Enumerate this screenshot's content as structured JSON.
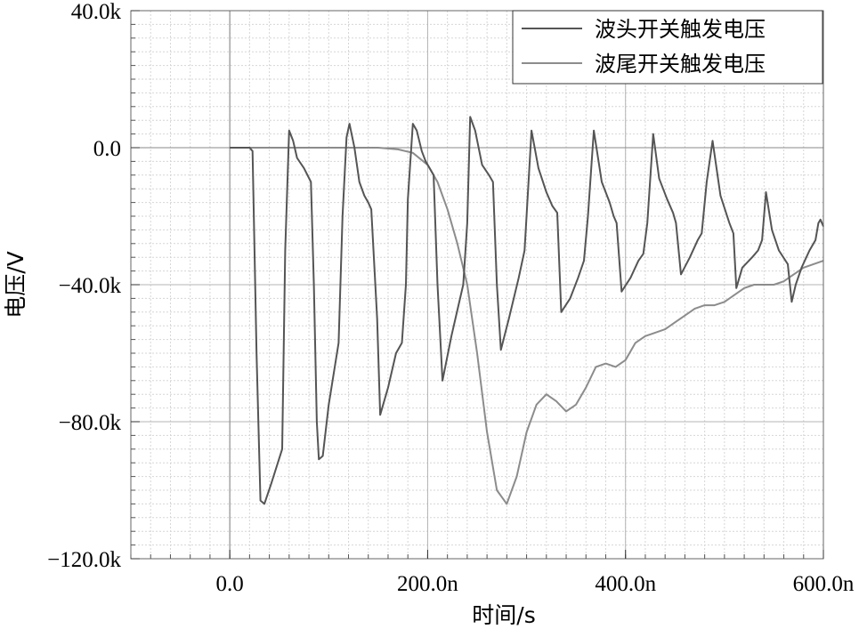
{
  "chart_data": {
    "type": "line",
    "xlabel": "时间/s",
    "ylabel": "电压/V",
    "x_unit": "s",
    "y_unit": "V",
    "xlim": [
      -1e-07,
      6e-07
    ],
    "ylim": [
      -120000,
      40000
    ],
    "x_ticks": [
      {
        "value": 0,
        "label": "0.0"
      },
      {
        "value": 2e-07,
        "label": "200.0n"
      },
      {
        "value": 4e-07,
        "label": "400.0n"
      },
      {
        "value": 6e-07,
        "label": "600.0n"
      }
    ],
    "y_ticks": [
      {
        "value": 40000,
        "label": "40.0k"
      },
      {
        "value": 0,
        "label": "0.0"
      },
      {
        "value": -40000,
        "label": "-40.0k"
      },
      {
        "value": -80000,
        "label": "-80.0k"
      },
      {
        "value": -120000,
        "label": "-120.0k"
      }
    ],
    "grid": true,
    "legend_position": "top-right",
    "series": [
      {
        "name": "波头开关触发电压",
        "color": "#555555",
        "x": [
          0,
          2e-08,
          2.3e-08,
          2.7e-08,
          3.1e-08,
          3.5e-08,
          4.2e-08,
          5.3e-08,
          5.6e-08,
          6e-08,
          6.4e-08,
          6.8e-08,
          7.5e-08,
          8.2e-08,
          8.5e-08,
          8.8e-08,
          9e-08,
          9.4e-08,
          1e-07,
          1.1e-07,
          1.14e-07,
          1.18e-07,
          1.21e-07,
          1.26e-07,
          1.31e-07,
          1.36e-07,
          1.4e-07,
          1.43e-07,
          1.49e-07,
          1.52e-07,
          1.6e-07,
          1.68e-07,
          1.74e-07,
          1.78e-07,
          1.8e-07,
          1.85e-07,
          1.89e-07,
          1.94e-07,
          1.98e-07,
          2.02e-07,
          2.06e-07,
          2.1e-07,
          2.15e-07,
          2.24e-07,
          2.36e-07,
          2.4e-07,
          2.43e-07,
          2.48e-07,
          2.55e-07,
          2.62e-07,
          2.66e-07,
          2.7e-07,
          2.74e-07,
          2.82e-07,
          2.92e-07,
          2.98e-07,
          3.05e-07,
          3.12e-07,
          3.2e-07,
          3.26e-07,
          3.31e-07,
          3.35e-07,
          3.44e-07,
          3.52e-07,
          3.58e-07,
          3.62e-07,
          3.68e-07,
          3.76e-07,
          3.84e-07,
          3.88e-07,
          3.91e-07,
          3.96e-07,
          4.05e-07,
          4.13e-07,
          4.18e-07,
          4.22e-07,
          4.28e-07,
          4.34e-07,
          4.42e-07,
          4.48e-07,
          4.51e-07,
          4.56e-07,
          4.65e-07,
          4.73e-07,
          4.77e-07,
          4.82e-07,
          4.88e-07,
          4.96e-07,
          5.05e-07,
          5.09e-07,
          5.12e-07,
          5.18e-07,
          5.28e-07,
          5.34e-07,
          5.38e-07,
          5.42e-07,
          5.48e-07,
          5.55e-07,
          5.64e-07,
          5.68e-07,
          5.72e-07,
          5.78e-07,
          5.86e-07,
          5.92e-07,
          5.95e-07,
          5.97e-07,
          6e-07
        ],
        "y": [
          0,
          0,
          -1000,
          -60000,
          -103000,
          -104000,
          -98000,
          -88000,
          -30000,
          5000,
          2000,
          -3000,
          -6000,
          -10000,
          -40000,
          -80000,
          -91000,
          -90000,
          -75000,
          -57000,
          -20000,
          3000,
          7000,
          0,
          -10000,
          -14000,
          -16000,
          -18000,
          -50000,
          -78000,
          -70000,
          -60000,
          -57000,
          -40000,
          -15000,
          7000,
          5000,
          -1000,
          -4000,
          -6000,
          -8000,
          -40000,
          -68000,
          -55000,
          -40000,
          -22000,
          9000,
          5000,
          -5000,
          -8000,
          -10000,
          -40000,
          -59000,
          -50000,
          -38000,
          -30000,
          5000,
          -6000,
          -13000,
          -17000,
          -19000,
          -48000,
          -44000,
          -38000,
          -33000,
          -20000,
          5000,
          -10000,
          -16000,
          -20000,
          -22000,
          -42000,
          -38000,
          -33000,
          -31000,
          -22000,
          4000,
          -9000,
          -15000,
          -19000,
          -22000,
          -37000,
          -32000,
          -27000,
          -25000,
          -10000,
          2000,
          -14000,
          -22000,
          -25000,
          -41000,
          -35000,
          -32000,
          -30000,
          -27000,
          -13000,
          -24000,
          -30000,
          -34000,
          -45000,
          -40000,
          -35000,
          -30000,
          -27000,
          -22000,
          -21000,
          -23000
        ]
      },
      {
        "name": "波尾开关触发电压",
        "color": "#8c8c8c",
        "x": [
          0,
          1.5e-07,
          1.7e-07,
          1.85e-07,
          2e-07,
          2.1e-07,
          2.2e-07,
          2.3e-07,
          2.4e-07,
          2.5e-07,
          2.6e-07,
          2.7e-07,
          2.8e-07,
          2.9e-07,
          3e-07,
          3.1e-07,
          3.2e-07,
          3.3e-07,
          3.4e-07,
          3.5e-07,
          3.6e-07,
          3.7e-07,
          3.8e-07,
          3.9e-07,
          4e-07,
          4.1e-07,
          4.2e-07,
          4.3e-07,
          4.4e-07,
          4.5e-07,
          4.6e-07,
          4.7e-07,
          4.8e-07,
          4.9e-07,
          5e-07,
          5.1e-07,
          5.2e-07,
          5.3e-07,
          5.4e-07,
          5.5e-07,
          5.6e-07,
          5.7e-07,
          5.8e-07,
          5.9e-07,
          6e-07
        ],
        "y": [
          0,
          0,
          -500,
          -1500,
          -5000,
          -10000,
          -18000,
          -28000,
          -40000,
          -60000,
          -83000,
          -100000,
          -104000,
          -96000,
          -83000,
          -75000,
          -72000,
          -74000,
          -77000,
          -75000,
          -70000,
          -64000,
          -63000,
          -64000,
          -62000,
          -57000,
          -55000,
          -54000,
          -53000,
          -51000,
          -49000,
          -47000,
          -46000,
          -46000,
          -45000,
          -43000,
          -41000,
          -40000,
          -40000,
          -40000,
          -39000,
          -37000,
          -35000,
          -34000,
          -33000
        ]
      }
    ]
  }
}
